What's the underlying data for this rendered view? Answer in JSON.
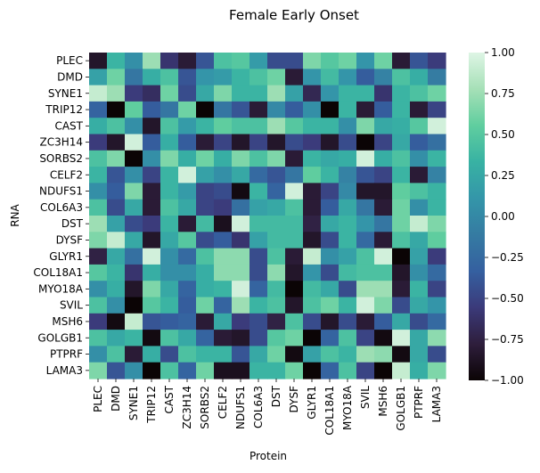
{
  "chart_data": {
    "type": "heatmap",
    "title": "Female Early Onset",
    "xlabel": "Protein",
    "ylabel": "RNA",
    "x_categories": [
      "PLEC",
      "DMD",
      "SYNE1",
      "TRIP12",
      "CAST",
      "ZC3H14",
      "SORBS2",
      "CELF2",
      "NDUFS1",
      "COL6A3",
      "DST",
      "DYSF",
      "GLYR1",
      "COL18A1",
      "MYO18A",
      "SVIL",
      "MSH6",
      "GOLGB1",
      "PTPRF",
      "LAMA3"
    ],
    "y_categories": [
      "PLEC",
      "DMD",
      "SYNE1",
      "TRIP12",
      "CAST",
      "ZC3H14",
      "SORBS2",
      "CELF2",
      "NDUFS1",
      "COL6A3",
      "DST",
      "DYSF",
      "GLYR1",
      "COL18A1",
      "MYO18A",
      "SVIL",
      "MSH6",
      "GOLGB1",
      "PTPRF",
      "LAMA3"
    ],
    "zlim": [
      -1,
      1
    ],
    "colorbar_ticks": [
      "1.00",
      "0.75",
      "0.50",
      "0.25",
      "0.00",
      "−0.25",
      "−0.50",
      "−0.75",
      "−1.00"
    ],
    "colorbar_tick_values": [
      1,
      0.75,
      0.5,
      0.25,
      0,
      -0.25,
      -0.5,
      -0.75,
      -1
    ],
    "colormap": [
      "#0b0405",
      "#2e1e3c",
      "#3b3a7a",
      "#3560a0",
      "#357ba2",
      "#3496a9",
      "#38b2a3",
      "#60ce9f",
      "#a6e0b7",
      "#def5e5"
    ],
    "values": [
      [
        -0.85,
        0.35,
        0.05,
        0.75,
        -0.6,
        -0.8,
        -0.4,
        0.45,
        0.5,
        0.15,
        -0.45,
        -0.45,
        0.65,
        0.5,
        0.6,
        0.1,
        0.6,
        -0.8,
        -0.4,
        -0.55
      ],
      [
        0.2,
        0.6,
        -0.15,
        0.3,
        0.45,
        -0.4,
        0.1,
        0.15,
        0.35,
        0.45,
        0.6,
        -0.8,
        0.1,
        0.4,
        0.1,
        -0.35,
        -0.05,
        0.45,
        0.3,
        -0.1
      ],
      [
        0.9,
        0.75,
        -0.55,
        -0.65,
        0.6,
        -0.45,
        0.25,
        0.65,
        0.35,
        0.35,
        0.75,
        0.2,
        -0.7,
        0.1,
        0.35,
        0.35,
        -0.6,
        0.35,
        0.45,
        0.6
      ],
      [
        -0.3,
        -1.0,
        0.55,
        -0.35,
        -0.15,
        0.6,
        -1.0,
        -0.15,
        -0.4,
        -0.8,
        0.0,
        -0.35,
        0.05,
        -1.0,
        0.35,
        -0.8,
        -0.35,
        0.35,
        -0.8,
        -0.5
      ],
      [
        0.3,
        0.45,
        0.05,
        -0.85,
        0.45,
        0.15,
        0.35,
        0.55,
        0.45,
        0.45,
        0.75,
        0.5,
        0.35,
        0.35,
        0.05,
        0.65,
        0.25,
        0.3,
        0.5,
        0.95
      ],
      [
        -0.55,
        -0.85,
        0.95,
        -0.35,
        0.3,
        -0.35,
        -0.8,
        -0.5,
        -0.85,
        -0.5,
        -0.85,
        -0.45,
        -0.55,
        -0.85,
        -0.45,
        -1.0,
        -0.5,
        0.25,
        -0.35,
        -0.2
      ],
      [
        0.45,
        0.65,
        -1.0,
        0.05,
        0.65,
        0.3,
        0.6,
        0.3,
        0.65,
        0.45,
        0.65,
        -0.8,
        0.35,
        0.25,
        0.3,
        0.95,
        0.3,
        0.45,
        0.05,
        0.35
      ],
      [
        0.35,
        -0.4,
        0.05,
        -0.5,
        0.35,
        0.95,
        0.2,
        0.05,
        0.25,
        -0.25,
        -0.4,
        -0.15,
        0.55,
        0.35,
        -0.05,
        -0.4,
        -0.5,
        0.35,
        -0.8,
        -0.05
      ],
      [
        0.05,
        -0.35,
        0.65,
        -0.8,
        0.35,
        0.15,
        -0.5,
        -0.45,
        -0.95,
        0.35,
        -0.3,
        0.95,
        -0.8,
        -0.5,
        0.0,
        -0.85,
        -0.85,
        0.55,
        0.45,
        0.35
      ],
      [
        0.45,
        -0.45,
        0.25,
        -0.8,
        0.45,
        0.25,
        -0.5,
        -0.55,
        -0.2,
        0.2,
        0.25,
        0.45,
        -0.8,
        -0.35,
        0.25,
        -0.15,
        -0.8,
        0.6,
        0.05,
        0.35
      ],
      [
        0.75,
        0.2,
        -0.45,
        -0.55,
        0.35,
        -0.8,
        0.4,
        -0.9,
        0.95,
        0.4,
        0.4,
        0.4,
        -0.75,
        0.25,
        0.35,
        0.1,
        -0.15,
        0.6,
        0.9,
        0.65
      ],
      [
        0.65,
        0.9,
        0.25,
        -0.85,
        0.25,
        0.5,
        -0.45,
        -0.35,
        -0.6,
        0.2,
        0.4,
        0.4,
        -0.85,
        -0.45,
        0.35,
        -0.25,
        -0.8,
        0.45,
        0.25,
        0.55
      ],
      [
        -0.75,
        0.25,
        -0.2,
        0.95,
        0.05,
        -0.25,
        0.45,
        0.7,
        0.7,
        -0.45,
        0.45,
        -0.8,
        0.9,
        0.05,
        0.2,
        0.45,
        0.95,
        -1.0,
        0.2,
        -0.55
      ],
      [
        0.5,
        0.35,
        -0.6,
        0.3,
        0.05,
        0.05,
        0.3,
        0.7,
        0.7,
        -0.45,
        0.7,
        -0.85,
        0.1,
        -0.45,
        0.4,
        0.45,
        0.45,
        -0.85,
        0.05,
        -0.25
      ],
      [
        0.05,
        0.3,
        -0.85,
        0.65,
        0.25,
        -0.3,
        0.3,
        0.35,
        0.95,
        -0.3,
        0.4,
        -1.0,
        0.4,
        0.25,
        -0.45,
        0.75,
        0.75,
        -0.8,
        0.35,
        -0.5
      ],
      [
        0.45,
        0.05,
        -1.0,
        0.5,
        0.35,
        -0.35,
        0.6,
        -0.3,
        0.75,
        0.35,
        0.45,
        -0.85,
        0.45,
        0.6,
        0.35,
        0.95,
        0.65,
        -0.45,
        0.25,
        0.1
      ],
      [
        -0.55,
        -0.95,
        0.9,
        -0.4,
        -0.35,
        -0.3,
        -0.8,
        0.25,
        -0.55,
        -0.45,
        -0.75,
        0.45,
        -0.45,
        -0.85,
        -0.45,
        -0.8,
        -0.35,
        0.25,
        -0.45,
        -0.25
      ],
      [
        0.45,
        0.25,
        0.35,
        -0.95,
        0.45,
        0.25,
        -0.3,
        -0.8,
        -0.85,
        -0.45,
        0.5,
        0.6,
        -1.0,
        -0.3,
        0.45,
        -0.5,
        -0.95,
        0.95,
        0.25,
        0.7
      ],
      [
        0.05,
        0.45,
        -0.8,
        0.3,
        -0.45,
        0.45,
        0.35,
        0.35,
        -0.4,
        0.25,
        0.6,
        -0.95,
        0.2,
        0.45,
        0.35,
        0.75,
        0.7,
        -0.95,
        0.25,
        -0.45
      ],
      [
        0.65,
        -0.4,
        0.05,
        -1.0,
        0.45,
        -0.3,
        0.6,
        -0.9,
        -0.9,
        0.35,
        0.35,
        0.6,
        -1.0,
        -0.3,
        0.45,
        -0.5,
        -1.0,
        0.9,
        0.3,
        0.65
      ]
    ]
  }
}
